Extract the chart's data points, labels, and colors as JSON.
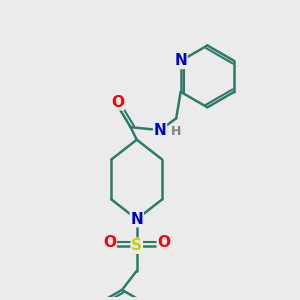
{
  "bg_color": "#ebebeb",
  "bond_color": "#2d7a6b",
  "bond_width": 1.8,
  "atom_colors": {
    "N": "#0000cc",
    "O": "#ff0000",
    "S": "#cccc00",
    "H": "#808080",
    "C": "#2d7a6b"
  },
  "font_size_atom": 11,
  "font_size_small": 9
}
